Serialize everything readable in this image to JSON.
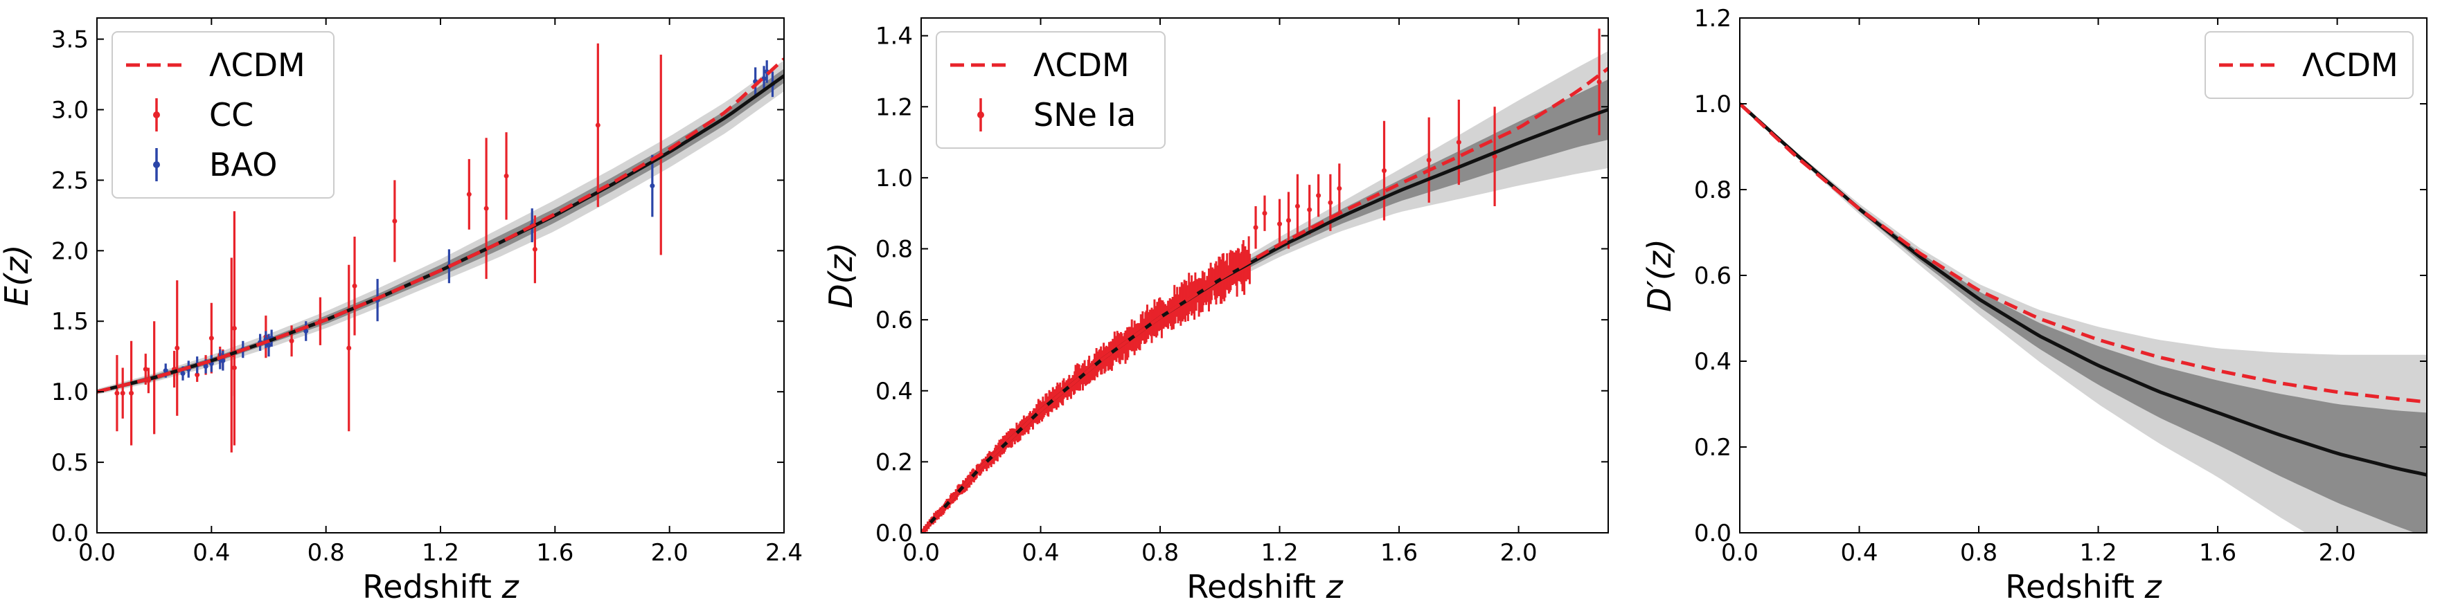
{
  "chart_data": [
    {
      "type": "line",
      "xlabel": "Redshift",
      "xlabel_var": "z",
      "ylabel": "E(z)",
      "xlim": [
        0.0,
        2.4
      ],
      "ylim": [
        0.0,
        3.65
      ],
      "xticks": [
        "0.0",
        "0.4",
        "0.8",
        "1.2",
        "1.6",
        "2.0",
        "2.4"
      ],
      "xtick_values": [
        0.0,
        0.4,
        0.8,
        1.2,
        1.6,
        2.0,
        2.4
      ],
      "yticks": [
        "0.0",
        "0.5",
        "1.0",
        "1.5",
        "2.0",
        "2.5",
        "3.0",
        "3.5"
      ],
      "ytick_values": [
        0.0,
        0.5,
        1.0,
        1.5,
        2.0,
        2.5,
        3.0,
        3.5
      ],
      "legend_position": "top-left",
      "legend": [
        {
          "label": "ΛCDM",
          "style": "dashed-line",
          "color": "#e8232a"
        },
        {
          "label": "CC",
          "style": "errorbar",
          "color": "#e8232a"
        },
        {
          "label": "BAO",
          "style": "errorbar",
          "color": "#2b45a8"
        }
      ],
      "reconstruction": {
        "x": [
          0.0,
          0.2,
          0.4,
          0.6,
          0.8,
          1.0,
          1.2,
          1.4,
          1.6,
          1.8,
          2.0,
          2.2,
          2.4
        ],
        "y": [
          1.0,
          1.1,
          1.22,
          1.36,
          1.51,
          1.68,
          1.86,
          2.05,
          2.25,
          2.47,
          2.7,
          2.95,
          3.24
        ],
        "band1": [
          0.01,
          0.02,
          0.02,
          0.02,
          0.03,
          0.03,
          0.04,
          0.05,
          0.05,
          0.05,
          0.05,
          0.05,
          0.05
        ],
        "band2": [
          0.02,
          0.03,
          0.04,
          0.05,
          0.06,
          0.07,
          0.08,
          0.1,
          0.11,
          0.11,
          0.11,
          0.11,
          0.11
        ]
      },
      "lcdm": {
        "x": [
          0.0,
          0.2,
          0.4,
          0.6,
          0.8,
          1.0,
          1.2,
          1.4,
          1.6,
          1.8,
          2.0,
          2.2,
          2.4
        ],
        "y": [
          1.0,
          1.1,
          1.22,
          1.36,
          1.51,
          1.68,
          1.86,
          2.05,
          2.26,
          2.48,
          2.72,
          2.99,
          3.36
        ]
      },
      "errorbar_series": [
        {
          "name": "CC",
          "color": "#e8232a",
          "points": [
            {
              "x": 0.07,
              "y": 0.99,
              "err": 0.27
            },
            {
              "x": 0.09,
              "y": 0.99,
              "err": 0.18
            },
            {
              "x": 0.12,
              "y": 0.99,
              "err": 0.37
            },
            {
              "x": 0.17,
              "y": 1.16,
              "err": 0.11
            },
            {
              "x": 0.18,
              "y": 1.08,
              "err": 0.09
            },
            {
              "x": 0.2,
              "y": 1.1,
              "err": 0.4
            },
            {
              "x": 0.27,
              "y": 1.16,
              "err": 0.13
            },
            {
              "x": 0.28,
              "y": 1.31,
              "err": 0.48
            },
            {
              "x": 0.35,
              "y": 1.12,
              "err": 0.05
            },
            {
              "x": 0.38,
              "y": 1.19,
              "err": 0.07
            },
            {
              "x": 0.4,
              "y": 1.38,
              "err": 0.25
            },
            {
              "x": 0.43,
              "y": 1.26,
              "err": 0.06
            },
            {
              "x": 0.44,
              "y": 1.23,
              "err": 0.07
            },
            {
              "x": 0.47,
              "y": 1.26,
              "err": 0.69
            },
            {
              "x": 0.48,
              "y": 1.45,
              "err": 0.83
            },
            {
              "x": 0.48,
              "y": 1.17,
              "err": 0.2
            },
            {
              "x": 0.59,
              "y": 1.39,
              "err": 0.15
            },
            {
              "x": 0.68,
              "y": 1.36,
              "err": 0.11
            },
            {
              "x": 0.78,
              "y": 1.5,
              "err": 0.17
            },
            {
              "x": 0.88,
              "y": 1.31,
              "err": 0.59
            },
            {
              "x": 0.9,
              "y": 1.75,
              "err": 0.35
            },
            {
              "x": 1.04,
              "y": 2.21,
              "err": 0.29
            },
            {
              "x": 1.3,
              "y": 2.4,
              "err": 0.25
            },
            {
              "x": 1.36,
              "y": 2.3,
              "err": 0.5
            },
            {
              "x": 1.43,
              "y": 2.53,
              "err": 0.31
            },
            {
              "x": 1.53,
              "y": 2.01,
              "err": 0.24
            },
            {
              "x": 1.75,
              "y": 2.89,
              "err": 0.58
            },
            {
              "x": 1.97,
              "y": 2.68,
              "err": 0.71
            }
          ]
        },
        {
          "name": "BAO",
          "color": "#2b45a8",
          "points": [
            {
              "x": 0.24,
              "y": 1.15,
              "err": 0.05
            },
            {
              "x": 0.3,
              "y": 1.13,
              "err": 0.05
            },
            {
              "x": 0.32,
              "y": 1.16,
              "err": 0.06
            },
            {
              "x": 0.35,
              "y": 1.19,
              "err": 0.06
            },
            {
              "x": 0.38,
              "y": 1.18,
              "err": 0.05
            },
            {
              "x": 0.4,
              "y": 1.2,
              "err": 0.06
            },
            {
              "x": 0.43,
              "y": 1.23,
              "err": 0.07
            },
            {
              "x": 0.44,
              "y": 1.22,
              "err": 0.07
            },
            {
              "x": 0.51,
              "y": 1.3,
              "err": 0.06
            },
            {
              "x": 0.57,
              "y": 1.35,
              "err": 0.06
            },
            {
              "x": 0.59,
              "y": 1.37,
              "err": 0.06
            },
            {
              "x": 0.6,
              "y": 1.33,
              "err": 0.08
            },
            {
              "x": 0.61,
              "y": 1.38,
              "err": 0.06
            },
            {
              "x": 0.73,
              "y": 1.43,
              "err": 0.07
            },
            {
              "x": 0.98,
              "y": 1.65,
              "err": 0.15
            },
            {
              "x": 1.23,
              "y": 1.89,
              "err": 0.12
            },
            {
              "x": 1.52,
              "y": 2.18,
              "err": 0.12
            },
            {
              "x": 1.94,
              "y": 2.46,
              "err": 0.22
            },
            {
              "x": 2.3,
              "y": 3.2,
              "err": 0.1
            },
            {
              "x": 2.33,
              "y": 3.22,
              "err": 0.09
            },
            {
              "x": 2.34,
              "y": 3.27,
              "err": 0.08
            },
            {
              "x": 2.36,
              "y": 3.18,
              "err": 0.09
            }
          ]
        }
      ]
    },
    {
      "type": "line",
      "xlabel": "Redshift",
      "xlabel_var": "z",
      "ylabel": "D(z)",
      "xlim": [
        0.0,
        2.3
      ],
      "ylim": [
        0.0,
        1.45
      ],
      "xticks": [
        "0.0",
        "0.4",
        "0.8",
        "1.2",
        "1.6",
        "2.0"
      ],
      "xtick_values": [
        0.0,
        0.4,
        0.8,
        1.2,
        1.6,
        2.0
      ],
      "yticks": [
        "0.0",
        "0.2",
        "0.4",
        "0.6",
        "0.8",
        "1.0",
        "1.2",
        "1.4"
      ],
      "ytick_values": [
        0.0,
        0.2,
        0.4,
        0.6,
        0.8,
        1.0,
        1.2,
        1.4
      ],
      "legend_position": "top-left",
      "legend": [
        {
          "label": "ΛCDM",
          "style": "dashed-line",
          "color": "#e8232a"
        },
        {
          "label": "SNe Ia",
          "style": "errorbar",
          "color": "#e8232a"
        }
      ],
      "reconstruction": {
        "x": [
          0.0,
          0.2,
          0.4,
          0.6,
          0.8,
          1.0,
          1.2,
          1.4,
          1.6,
          1.8,
          2.0,
          2.2,
          2.3
        ],
        "y": [
          0.0,
          0.185,
          0.345,
          0.485,
          0.607,
          0.713,
          0.805,
          0.888,
          0.963,
          1.03,
          1.098,
          1.162,
          1.192
        ],
        "band1": [
          0.0,
          0.002,
          0.003,
          0.005,
          0.008,
          0.01,
          0.014,
          0.02,
          0.03,
          0.045,
          0.06,
          0.075,
          0.085
        ],
        "band2": [
          0.0,
          0.005,
          0.007,
          0.01,
          0.015,
          0.02,
          0.028,
          0.04,
          0.06,
          0.09,
          0.12,
          0.15,
          0.165
        ]
      },
      "lcdm": {
        "x": [
          0.0,
          0.2,
          0.4,
          0.6,
          0.8,
          1.0,
          1.2,
          1.4,
          1.6,
          1.8,
          2.0,
          2.2,
          2.3
        ],
        "y": [
          0.0,
          0.185,
          0.345,
          0.485,
          0.607,
          0.715,
          0.812,
          0.9,
          0.982,
          1.06,
          1.14,
          1.245,
          1.308
        ]
      },
      "sne_dense": {
        "x_range": [
          0.01,
          1.1
        ],
        "count": 360,
        "err_at_low_z": 0.01,
        "err_at_high_z": 0.05,
        "color": "#e8232a"
      },
      "errorbar_series": [
        {
          "name": "SNe Ia",
          "color": "#e8232a",
          "points": [
            {
              "x": 1.12,
              "y": 0.86,
              "err": 0.06
            },
            {
              "x": 1.15,
              "y": 0.9,
              "err": 0.05
            },
            {
              "x": 1.2,
              "y": 0.87,
              "err": 0.07
            },
            {
              "x": 1.23,
              "y": 0.88,
              "err": 0.08
            },
            {
              "x": 1.26,
              "y": 0.92,
              "err": 0.09
            },
            {
              "x": 1.3,
              "y": 0.91,
              "err": 0.07
            },
            {
              "x": 1.33,
              "y": 0.95,
              "err": 0.06
            },
            {
              "x": 1.37,
              "y": 0.93,
              "err": 0.08
            },
            {
              "x": 1.4,
              "y": 0.97,
              "err": 0.07
            },
            {
              "x": 1.55,
              "y": 1.02,
              "err": 0.14
            },
            {
              "x": 1.7,
              "y": 1.05,
              "err": 0.12
            },
            {
              "x": 1.8,
              "y": 1.1,
              "err": 0.12
            },
            {
              "x": 1.92,
              "y": 1.06,
              "err": 0.14
            },
            {
              "x": 2.27,
              "y": 1.27,
              "err": 0.15
            }
          ]
        }
      ]
    },
    {
      "type": "line",
      "xlabel": "Redshift",
      "xlabel_var": "z",
      "ylabel": "D′(z)",
      "xlim": [
        0.0,
        2.3
      ],
      "ylim": [
        0.0,
        1.2
      ],
      "xticks": [
        "0.0",
        "0.4",
        "0.8",
        "1.2",
        "1.6",
        "2.0"
      ],
      "xtick_values": [
        0.0,
        0.4,
        0.8,
        1.2,
        1.6,
        2.0
      ],
      "yticks": [
        "0.0",
        "0.2",
        "0.4",
        "0.6",
        "0.8",
        "1.0",
        "1.2"
      ],
      "ytick_values": [
        0.0,
        0.2,
        0.4,
        0.6,
        0.8,
        1.0,
        1.2
      ],
      "legend_position": "top-right",
      "legend": [
        {
          "label": "ΛCDM",
          "style": "dashed-line",
          "color": "#e8232a"
        }
      ],
      "reconstruction": {
        "x": [
          0.0,
          0.2,
          0.4,
          0.6,
          0.8,
          1.0,
          1.2,
          1.4,
          1.6,
          1.8,
          2.0,
          2.2,
          2.3
        ],
        "y": [
          1.0,
          0.875,
          0.755,
          0.645,
          0.545,
          0.46,
          0.39,
          0.33,
          0.28,
          0.23,
          0.185,
          0.15,
          0.135
        ],
        "band1": [
          0.0,
          0.003,
          0.006,
          0.01,
          0.018,
          0.03,
          0.045,
          0.06,
          0.075,
          0.095,
          0.115,
          0.135,
          0.145
        ],
        "band2": [
          0.0,
          0.006,
          0.012,
          0.02,
          0.035,
          0.06,
          0.09,
          0.12,
          0.15,
          0.19,
          0.23,
          0.265,
          0.28
        ]
      },
      "lcdm": {
        "x": [
          0.0,
          0.2,
          0.4,
          0.6,
          0.8,
          1.0,
          1.2,
          1.4,
          1.6,
          1.8,
          2.0,
          2.2,
          2.3
        ],
        "y": [
          1.0,
          0.87,
          0.755,
          0.653,
          0.565,
          0.5,
          0.45,
          0.41,
          0.378,
          0.35,
          0.328,
          0.312,
          0.305
        ]
      }
    }
  ],
  "colors": {
    "reconstruction_line": "#111111",
    "band_inner": "#8c8c8c",
    "band_outer": "#d4d4d4",
    "lcdm": "#e8232a",
    "cc": "#e8232a",
    "bao": "#2b45a8"
  }
}
